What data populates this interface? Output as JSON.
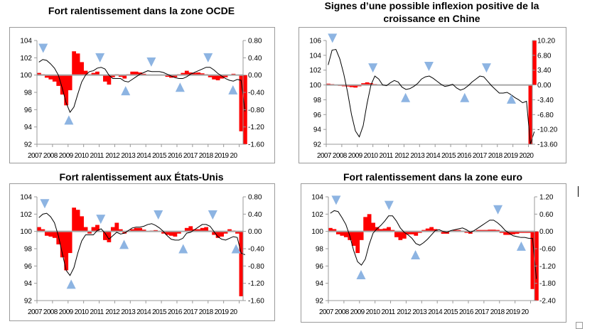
{
  "colors": {
    "bars": "#ff0000",
    "line": "#000000",
    "zero_line": "#a6a6a6",
    "markers": "#8db4e2",
    "axis": "#999999"
  },
  "chart_data": [
    {
      "type": "bar+line",
      "title": "Fort ralentissement dans la zone OCDE",
      "x_ticks": [
        "2007",
        "2008",
        "2009",
        "2010",
        "2011",
        "2012",
        "2013",
        "2014",
        "2015",
        "2016",
        "2017",
        "2018",
        "2019",
        "20"
      ],
      "xlim": [
        "2007",
        "2020Q2"
      ],
      "left_axis": {
        "range": [
          92,
          104
        ],
        "ticks": [
          "92",
          "94",
          "96",
          "98",
          "100",
          "102",
          "104"
        ]
      },
      "right_axis": {
        "range": [
          -1.6,
          0.8
        ],
        "ticks": [
          "-1.60",
          "-1.20",
          "-0.80",
          "-0.40",
          "0.00",
          "0.40",
          "0.80"
        ]
      },
      "start": "2007Q1",
      "frequency": "quarterly",
      "line": [
        101.5,
        101.8,
        101.7,
        101.3,
        100.8,
        100,
        98.5,
        96.8,
        95.7,
        96.3,
        97.8,
        99.2,
        100,
        100.4,
        100.5,
        100.8,
        100.9,
        100.7,
        100,
        99.6,
        99.6,
        99.6,
        99.3,
        99.2,
        99.5,
        99.8,
        100.1,
        100.3,
        100.5,
        100.4,
        100.4,
        100.4,
        100.3,
        100.1,
        99.9,
        99.7,
        99.6,
        99.6,
        99.8,
        100.1,
        100.3,
        100.5,
        100.7,
        100.9,
        100.9,
        100.6,
        100.2,
        99.9,
        99.6,
        99.4,
        99.3,
        99.5,
        99.4,
        95.8
      ],
      "bars": [
        0.05,
        0.02,
        -0.06,
        -0.1,
        -0.15,
        -0.25,
        -0.45,
        -0.7,
        -0.35,
        0.55,
        0.5,
        0.3,
        0.1,
        0.02,
        0.05,
        0.08,
        0,
        -0.15,
        -0.22,
        -0.05,
        0.02,
        -0.04,
        -0.08,
        0.02,
        0.08,
        0.08,
        0.06,
        0.03,
        0,
        0,
        0,
        0,
        0,
        -0.04,
        -0.06,
        -0.05,
        0.02,
        0.05,
        0.1,
        0.06,
        0.05,
        0.06,
        0.04,
        0.02,
        -0.05,
        -0.1,
        -0.12,
        -0.08,
        -0.05,
        0,
        0.03,
        0,
        -1.3,
        -1.6
      ],
      "markers": [
        {
          "date": 2007.4,
          "value": 103.1,
          "dir": "down"
        },
        {
          "date": 2011.05,
          "value": 102,
          "dir": "down"
        },
        {
          "date": 2014.35,
          "value": 101.5,
          "dir": "down"
        },
        {
          "date": 2018.0,
          "value": 102,
          "dir": "down"
        },
        {
          "date": 2009.05,
          "value": 94.8,
          "dir": "up"
        },
        {
          "date": 2012.7,
          "value": 98.2,
          "dir": "up"
        },
        {
          "date": 2016.2,
          "value": 98.6,
          "dir": "up"
        },
        {
          "date": 2019.6,
          "value": 98.3,
          "dir": "up"
        }
      ]
    },
    {
      "type": "bar+line",
      "title": "Signes d’une possible inflexion positive de la croissance  en Chine",
      "title_lines": [
        "Signes d’une possible inflexion positive de la",
        "croissance  en Chine"
      ],
      "x_ticks": [
        "2007",
        "2008",
        "2009",
        "2010",
        "2011",
        "2012",
        "2013",
        "2014",
        "2015",
        "2016",
        "2017",
        "2018",
        "2019",
        "2020"
      ],
      "xlim": [
        "2007",
        "2020Q2"
      ],
      "left_axis": {
        "range": [
          92,
          106
        ],
        "ticks": [
          "92",
          "94",
          "96",
          "98",
          "100",
          "102",
          "104",
          "106"
        ]
      },
      "right_axis": {
        "range": [
          -13.6,
          10.2
        ],
        "ticks": [
          "-13.60",
          "-10.20",
          "-6.80",
          "-3.40",
          "0.00",
          "3.40",
          "6.80",
          "10.20"
        ]
      },
      "start": "2007Q1",
      "frequency": "quarterly",
      "line": [
        102.7,
        104.7,
        104.8,
        103.5,
        101.5,
        99,
        96,
        93.8,
        93,
        94.5,
        97.5,
        100,
        101.2,
        100.8,
        100,
        99.9,
        100.3,
        100.6,
        100.4,
        99.7,
        99.4,
        99.5,
        99.8,
        100.2,
        100.8,
        101.1,
        101.2,
        100.9,
        100.5,
        100.1,
        99.8,
        99.9,
        100.1,
        99.6,
        99.3,
        99.5,
        99.9,
        100.4,
        100.8,
        101.2,
        101.1,
        100.5,
        99.9,
        99.4,
        98.9,
        98.9,
        99,
        98.7,
        98.3,
        98,
        97.6,
        97.8,
        92,
        93.7
      ],
      "bars": [
        0.3,
        0.2,
        -0.1,
        -0.2,
        -0.3,
        -0.35,
        -0.5,
        -0.6,
        -0.3,
        0.4,
        0.6,
        0.4,
        0.2,
        0.1,
        -0.1,
        -0.1,
        0.05,
        0.05,
        0.05,
        0,
        0,
        0.05,
        0.05,
        0.05,
        0.05,
        0.05,
        0.05,
        0.05,
        0,
        0,
        0,
        0,
        0.05,
        0,
        0,
        0.05,
        0.05,
        0.05,
        0.05,
        0.05,
        0.05,
        0,
        0,
        0,
        0,
        0,
        0.05,
        0,
        0,
        0,
        0,
        0,
        -13.6,
        10.2
      ],
      "markers": [
        {
          "date": 2007.4,
          "value": 106.3,
          "dir": "down"
        },
        {
          "date": 2010.0,
          "value": 102.3,
          "dir": "down"
        },
        {
          "date": 2013.6,
          "value": 102.5,
          "dir": "down"
        },
        {
          "date": 2017.3,
          "value": 102.3,
          "dir": "down"
        },
        {
          "date": 2012.1,
          "value": 98.3,
          "dir": "up"
        },
        {
          "date": 2015.9,
          "value": 98.3,
          "dir": "up"
        },
        {
          "date": 2018.9,
          "value": 98.1,
          "dir": "up"
        }
      ]
    },
    {
      "type": "bar+line",
      "title": "Fort ralentissement aux États-Unis",
      "x_ticks": [
        "2007",
        "2008",
        "2009",
        "2010",
        "2011",
        "2012",
        "2013",
        "2014",
        "2015",
        "2016",
        "2017",
        "2018",
        "2019",
        "20"
      ],
      "xlim": [
        "2007",
        "2020Q2"
      ],
      "left_axis": {
        "range": [
          92,
          104
        ],
        "ticks": [
          "92",
          "94",
          "96",
          "98",
          "100",
          "102",
          "104"
        ]
      },
      "right_axis": {
        "range": [
          -1.6,
          0.8
        ],
        "ticks": [
          "-1.60",
          "-1.20",
          "-0.80",
          "-0.40",
          "0.00",
          "0.40",
          "0.80"
        ]
      },
      "start": "2007Q1",
      "frequency": "quarterly",
      "line": [
        101.6,
        102,
        102.1,
        101.7,
        101,
        99.5,
        97.5,
        95.5,
        94.9,
        95.8,
        97.5,
        98.9,
        99.6,
        99.6,
        99.6,
        100.1,
        100.3,
        99.8,
        99.1,
        99.5,
        99.9,
        99.7,
        99.8,
        100.1,
        100.4,
        100.5,
        100.5,
        100.6,
        100.8,
        100.9,
        100.7,
        100.4,
        100,
        99.5,
        99.1,
        99,
        99,
        99.2,
        99.8,
        99.9,
        100.2,
        100.5,
        100.8,
        100.8,
        100.6,
        100,
        99.4,
        99.1,
        99,
        99.2,
        99.4,
        99.3,
        97.5,
        97.3
      ],
      "bars": [
        0.1,
        0.05,
        -0.1,
        -0.12,
        -0.15,
        -0.3,
        -0.6,
        -0.9,
        -0.5,
        0.55,
        0.5,
        0.35,
        0.1,
        -0.05,
        0.1,
        0.15,
        0,
        -0.2,
        -0.25,
        0.1,
        0.2,
        0.05,
        -0.05,
        0.02,
        0.05,
        0.08,
        0.08,
        0.04,
        0,
        0.02,
        0.03,
        0,
        -0.05,
        -0.08,
        -0.1,
        -0.12,
        -0.05,
        0,
        0.08,
        0.12,
        0.05,
        0.05,
        0.08,
        0.1,
        0.02,
        -0.08,
        -0.15,
        -0.12,
        -0.05,
        0.05,
        0.02,
        -0.05,
        -1.5,
        0
      ],
      "markers": [
        {
          "date": 2007.5,
          "value": 103.2,
          "dir": "down"
        },
        {
          "date": 2011.1,
          "value": 101.4,
          "dir": "down"
        },
        {
          "date": 2014.8,
          "value": 101.9,
          "dir": "down"
        },
        {
          "date": 2018.3,
          "value": 101.9,
          "dir": "down"
        },
        {
          "date": 2009.2,
          "value": 93.9,
          "dir": "up"
        },
        {
          "date": 2012.6,
          "value": 98.5,
          "dir": "up"
        },
        {
          "date": 2016.4,
          "value": 98.0,
          "dir": "up"
        },
        {
          "date": 2019.8,
          "value": 98.0,
          "dir": "up"
        }
      ]
    },
    {
      "type": "bar+line",
      "title": "Fort ralentissement dans la zone euro",
      "x_ticks": [
        "2007",
        "2008",
        "2009",
        "2010",
        "2011",
        "2012",
        "2013",
        "2014",
        "2015",
        "2016",
        "2017",
        "2018",
        "2019",
        "20"
      ],
      "xlim": [
        "2007",
        "2020Q2"
      ],
      "left_axis": {
        "range": [
          92,
          104
        ],
        "ticks": [
          "92",
          "94",
          "96",
          "98",
          "100",
          "102",
          "104"
        ]
      },
      "right_axis": {
        "range": [
          -2.4,
          1.2
        ],
        "ticks": [
          "-2.40",
          "-1.80",
          "-1.20",
          "-0.60",
          "0.00",
          "0.60",
          "1.20"
        ]
      },
      "start": "2007Q1",
      "frequency": "quarterly",
      "line": [
        102.1,
        102.4,
        102.3,
        101.6,
        100.8,
        99.5,
        97.8,
        96.5,
        96.1,
        96.8,
        98.5,
        99.8,
        100.3,
        100.7,
        101.2,
        101.8,
        101.8,
        101.2,
        100.4,
        99.9,
        99.6,
        99.2,
        98.6,
        98.4,
        98.7,
        99.1,
        99.6,
        100.1,
        100.2,
        100,
        99.9,
        100.1,
        100.2,
        100.3,
        100.4,
        100.2,
        99.9,
        100.1,
        100.4,
        100.7,
        101,
        101.3,
        101.3,
        101,
        100.6,
        100.1,
        99.8,
        99.5,
        99.4,
        99.3,
        99.3,
        99.2,
        99.2,
        94.5
      ],
      "bars": [
        0.12,
        0.08,
        -0.1,
        -0.15,
        -0.2,
        -0.3,
        -0.5,
        -0.75,
        -0.3,
        0.5,
        0.6,
        0.3,
        0.15,
        0.08,
        0.1,
        0.15,
        0.05,
        -0.2,
        -0.3,
        -0.25,
        -0.1,
        -0.1,
        -0.15,
        -0.05,
        0.05,
        0.1,
        0.15,
        0.08,
        0,
        -0.08,
        -0.08,
        0,
        0.05,
        0.05,
        0.02,
        -0.05,
        -0.08,
        0,
        0.05,
        0.05,
        0.05,
        0.06,
        0.06,
        0.05,
        -0.05,
        -0.12,
        -0.12,
        -0.1,
        -0.08,
        -0.05,
        -0.05,
        -0.05,
        -2.0,
        -2.4
      ],
      "markers": [
        {
          "date": 2007.5,
          "value": 103.6,
          "dir": "down"
        },
        {
          "date": 2010.9,
          "value": 103,
          "dir": "down"
        },
        {
          "date": 2017.9,
          "value": 102.5,
          "dir": "down"
        },
        {
          "date": 2009.1,
          "value": 95,
          "dir": "up"
        },
        {
          "date": 2012.6,
          "value": 97.3,
          "dir": "up"
        },
        {
          "date": 2019.4,
          "value": 98.3,
          "dir": "up"
        }
      ]
    }
  ]
}
